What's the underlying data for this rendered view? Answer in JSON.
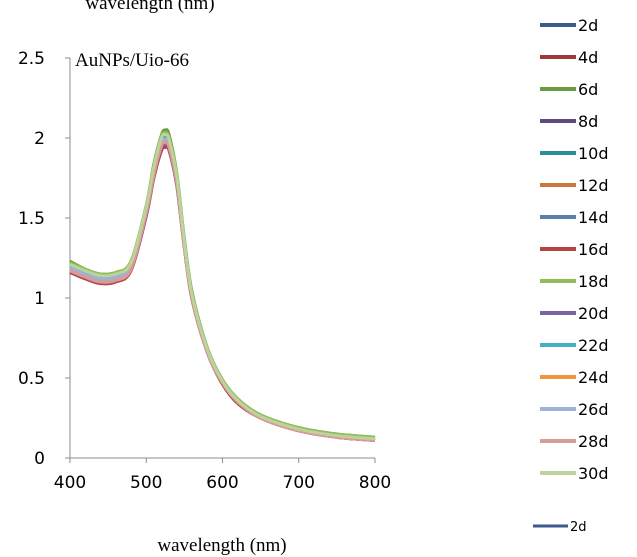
{
  "chart_data": {
    "type": "line",
    "header_partial": "wavelength (nm)",
    "annotation": "AuNPs/Uio-66",
    "xlabel": "wavelength (nm)",
    "ylabel": "",
    "xlim": [
      400,
      800
    ],
    "ylim": [
      0,
      2.5
    ],
    "xticks": [
      "400",
      "500",
      "600",
      "700",
      "800"
    ],
    "yticks": [
      "0",
      "0.5",
      "1",
      "1.5",
      "2",
      "2.5"
    ],
    "legend_position": "right",
    "x": [
      400,
      420,
      440,
      460,
      480,
      500,
      510,
      520,
      525,
      530,
      540,
      550,
      560,
      580,
      600,
      620,
      650,
      700,
      750,
      800
    ],
    "series": [
      {
        "name": "2d",
        "color": "#3d5a8c",
        "values": [
          1.19,
          1.15,
          1.12,
          1.13,
          1.2,
          1.55,
          1.8,
          1.99,
          2.01,
          1.98,
          1.75,
          1.35,
          1.02,
          0.68,
          0.48,
          0.36,
          0.26,
          0.18,
          0.14,
          0.12
        ]
      },
      {
        "name": "4d",
        "color": "#9b3a3a",
        "values": [
          1.16,
          1.12,
          1.1,
          1.11,
          1.18,
          1.52,
          1.76,
          1.93,
          1.95,
          1.93,
          1.71,
          1.32,
          1.0,
          0.67,
          0.47,
          0.35,
          0.25,
          0.17,
          0.13,
          0.11
        ]
      },
      {
        "name": "6d",
        "color": "#6e9a42",
        "values": [
          1.23,
          1.18,
          1.15,
          1.16,
          1.23,
          1.58,
          1.84,
          2.02,
          2.05,
          2.02,
          1.78,
          1.37,
          1.04,
          0.69,
          0.49,
          0.37,
          0.27,
          0.19,
          0.15,
          0.13
        ]
      },
      {
        "name": "8d",
        "color": "#5e4a80",
        "values": [
          1.17,
          1.13,
          1.1,
          1.11,
          1.18,
          1.53,
          1.77,
          1.95,
          1.97,
          1.95,
          1.72,
          1.32,
          1.0,
          0.66,
          0.47,
          0.35,
          0.25,
          0.17,
          0.13,
          0.11
        ]
      },
      {
        "name": "10d",
        "color": "#2f8a9a",
        "values": [
          1.2,
          1.16,
          1.13,
          1.14,
          1.21,
          1.56,
          1.81,
          2.0,
          2.02,
          1.99,
          1.76,
          1.35,
          1.02,
          0.68,
          0.48,
          0.36,
          0.26,
          0.18,
          0.14,
          0.12
        ]
      },
      {
        "name": "12d",
        "color": "#c9773a",
        "values": [
          1.18,
          1.14,
          1.11,
          1.12,
          1.19,
          1.54,
          1.79,
          1.97,
          1.99,
          1.96,
          1.73,
          1.33,
          1.01,
          0.67,
          0.47,
          0.35,
          0.25,
          0.17,
          0.13,
          0.11
        ]
      },
      {
        "name": "14d",
        "color": "#5a7fb3",
        "values": [
          1.19,
          1.15,
          1.12,
          1.13,
          1.2,
          1.55,
          1.8,
          1.98,
          2.0,
          1.97,
          1.74,
          1.34,
          1.01,
          0.67,
          0.48,
          0.36,
          0.26,
          0.18,
          0.14,
          0.12
        ]
      },
      {
        "name": "16d",
        "color": "#b34545",
        "values": [
          1.16,
          1.12,
          1.09,
          1.1,
          1.17,
          1.51,
          1.75,
          1.92,
          1.94,
          1.92,
          1.7,
          1.31,
          0.99,
          0.66,
          0.46,
          0.34,
          0.25,
          0.17,
          0.13,
          0.11
        ]
      },
      {
        "name": "18d",
        "color": "#93bd58",
        "values": [
          1.22,
          1.18,
          1.15,
          1.16,
          1.23,
          1.58,
          1.83,
          2.01,
          2.03,
          2.0,
          1.77,
          1.36,
          1.03,
          0.69,
          0.49,
          0.37,
          0.27,
          0.19,
          0.15,
          0.13
        ]
      },
      {
        "name": "20d",
        "color": "#7b63a3",
        "values": [
          1.17,
          1.13,
          1.1,
          1.11,
          1.18,
          1.52,
          1.77,
          1.94,
          1.96,
          1.94,
          1.71,
          1.32,
          1.0,
          0.66,
          0.47,
          0.35,
          0.25,
          0.17,
          0.13,
          0.11
        ]
      },
      {
        "name": "22d",
        "color": "#44b0c8",
        "values": [
          1.2,
          1.16,
          1.13,
          1.14,
          1.21,
          1.56,
          1.81,
          1.99,
          2.01,
          1.98,
          1.75,
          1.35,
          1.02,
          0.68,
          0.48,
          0.36,
          0.26,
          0.18,
          0.14,
          0.12
        ]
      },
      {
        "name": "24d",
        "color": "#f0963c",
        "values": [
          1.18,
          1.14,
          1.11,
          1.12,
          1.19,
          1.54,
          1.78,
          1.96,
          1.98,
          1.96,
          1.73,
          1.33,
          1.01,
          0.67,
          0.47,
          0.35,
          0.25,
          0.17,
          0.13,
          0.11
        ]
      },
      {
        "name": "26d",
        "color": "#9fb2d6",
        "values": [
          1.19,
          1.15,
          1.12,
          1.13,
          1.2,
          1.55,
          1.8,
          1.97,
          1.99,
          1.97,
          1.74,
          1.34,
          1.01,
          0.67,
          0.48,
          0.36,
          0.26,
          0.18,
          0.14,
          0.12
        ]
      },
      {
        "name": "28d",
        "color": "#d99a98",
        "values": [
          1.17,
          1.13,
          1.1,
          1.11,
          1.18,
          1.53,
          1.77,
          1.95,
          1.97,
          1.94,
          1.72,
          1.32,
          1.0,
          0.66,
          0.47,
          0.35,
          0.25,
          0.17,
          0.13,
          0.11
        ]
      },
      {
        "name": "30d",
        "color": "#bcd49a",
        "values": [
          1.21,
          1.17,
          1.14,
          1.15,
          1.22,
          1.57,
          1.82,
          2.0,
          2.02,
          1.99,
          1.76,
          1.35,
          1.02,
          0.68,
          0.48,
          0.36,
          0.26,
          0.18,
          0.14,
          0.12
        ]
      }
    ],
    "extra_legend": {
      "name": "2d",
      "color": "#3d5a8c"
    }
  }
}
